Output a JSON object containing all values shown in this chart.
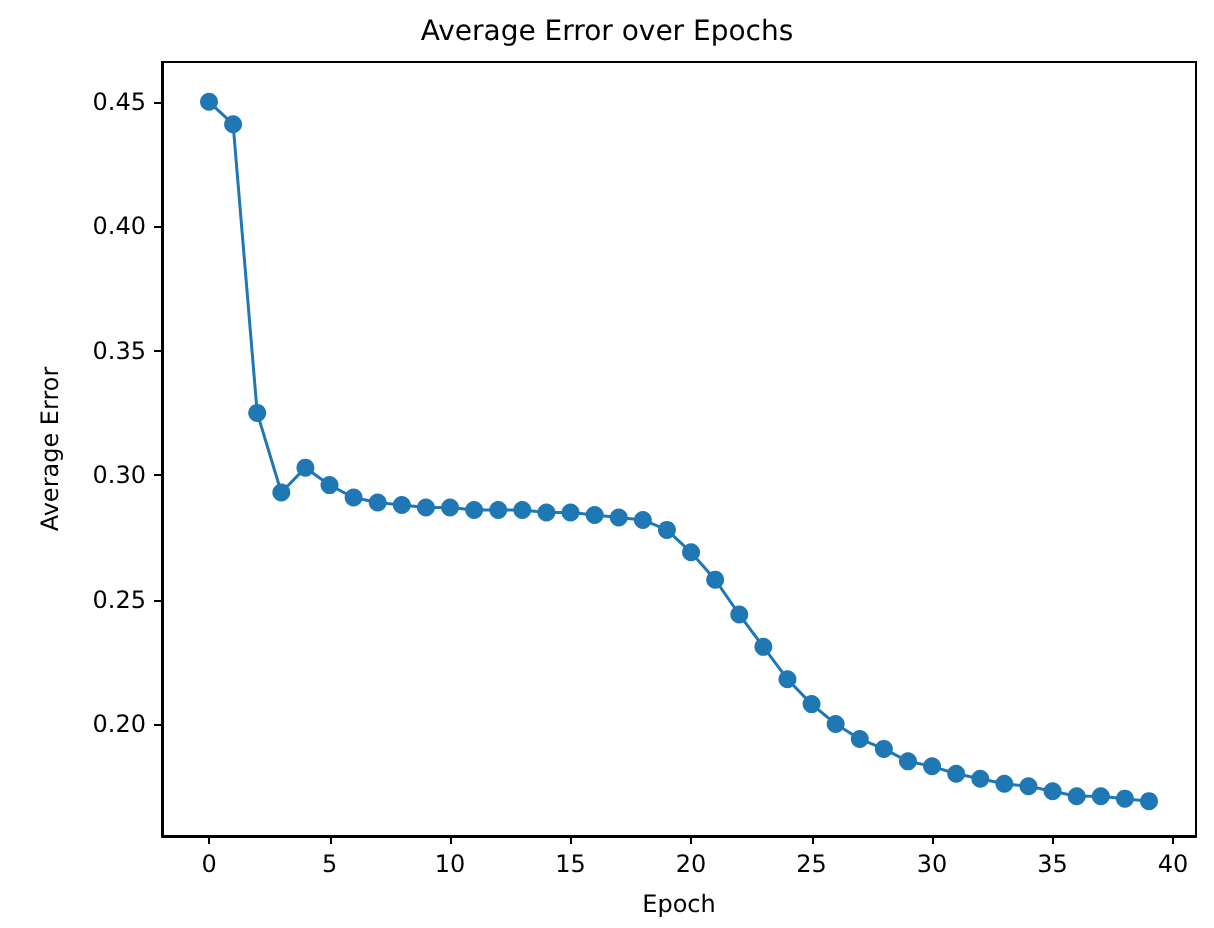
{
  "chart_data": {
    "type": "line",
    "title": "Average Error over Epochs",
    "xlabel": "Epoch",
    "ylabel": "Average Error",
    "x": [
      0,
      1,
      2,
      3,
      4,
      5,
      6,
      7,
      8,
      9,
      10,
      11,
      12,
      13,
      14,
      15,
      16,
      17,
      18,
      19,
      20,
      21,
      22,
      23,
      24,
      25,
      26,
      27,
      28,
      29,
      30,
      31,
      32,
      33,
      34,
      35,
      36,
      37,
      38,
      39
    ],
    "series": [
      {
        "color": "#1f77b4",
        "values": [
          0.45,
          0.441,
          0.325,
          0.293,
          0.303,
          0.296,
          0.291,
          0.289,
          0.288,
          0.287,
          0.287,
          0.286,
          0.286,
          0.286,
          0.285,
          0.285,
          0.284,
          0.283,
          0.282,
          0.278,
          0.269,
          0.258,
          0.244,
          0.231,
          0.218,
          0.208,
          0.2,
          0.194,
          0.19,
          0.185,
          0.183,
          0.18,
          0.178,
          0.176,
          0.175,
          0.173,
          0.171,
          0.171,
          0.17,
          0.169
        ]
      }
    ],
    "xlim": [
      -1.95,
      40.95
    ],
    "xticks": [
      0,
      5,
      10,
      15,
      20,
      25,
      30,
      35,
      40
    ],
    "ylim": [
      0.155,
      0.466
    ],
    "yticks": [
      {
        "value": 0.2,
        "label": "0.20"
      },
      0.25,
      {
        "value": 0.3,
        "label": "0.30"
      },
      0.35,
      {
        "value": 0.4,
        "label": "0.40"
      },
      0.45
    ],
    "grid": false,
    "marker": "circle",
    "line_style": "solid"
  }
}
